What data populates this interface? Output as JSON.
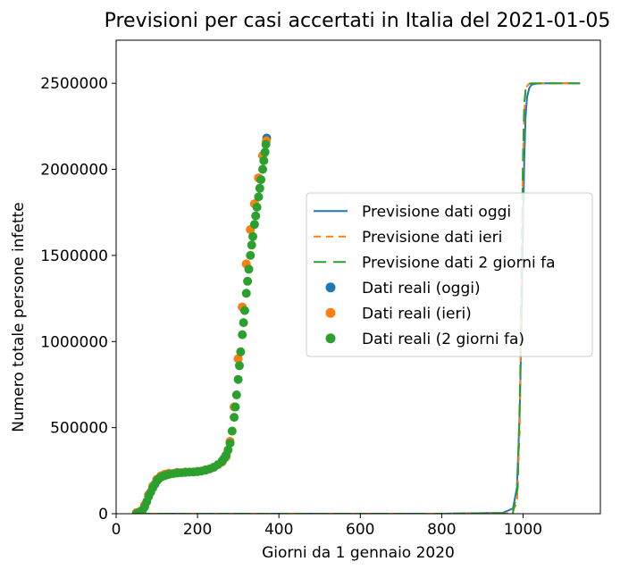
{
  "chart_data": {
    "type": "scatter",
    "title": "Previsioni per casi accertati in Italia del 2021-01-05",
    "xlabel": "Giorni da 1 gennaio 2020",
    "ylabel": "Numero totale persone infette",
    "xlim": [
      0,
      1190
    ],
    "ylim": [
      0,
      2750000
    ],
    "xticks": [
      0,
      200,
      400,
      600,
      800,
      1000
    ],
    "yticks": [
      0,
      500000,
      1000000,
      1500000,
      2000000,
      2500000
    ],
    "xtick_labels": [
      "0",
      "200",
      "400",
      "600",
      "800",
      "1000"
    ],
    "ytick_labels": [
      "0",
      "500000",
      "1000000",
      "1500000",
      "2000000",
      "2500000"
    ],
    "grid": false,
    "legend_position": "center-right",
    "colors": {
      "blue": "#1f77b4",
      "orange": "#ff7f0e",
      "green": "#2ca02c"
    },
    "series": [
      {
        "name": "Previsione dati oggi",
        "kind": "line",
        "style": "solid",
        "color": "#1f77b4",
        "x": [
          55,
          200,
          400,
          600,
          800,
          950,
          975,
          985,
          992,
          997,
          1000,
          1003,
          1006,
          1010,
          1015,
          1020,
          1030,
          1050,
          1100,
          1140
        ],
        "y": [
          0,
          0,
          0,
          0,
          0,
          5000,
          30000,
          150000,
          600000,
          1200000,
          1700000,
          2050000,
          2300000,
          2420000,
          2470000,
          2490000,
          2497000,
          2500000,
          2500000,
          2500000
        ]
      },
      {
        "name": "Previsione dati ieri",
        "kind": "line",
        "style": "dashed",
        "color": "#ff7f0e",
        "x": [
          55,
          200,
          400,
          600,
          800,
          970,
          985,
          992,
          996,
          999,
          1002,
          1005,
          1009,
          1014,
          1020,
          1030,
          1050,
          1100,
          1140
        ],
        "y": [
          0,
          0,
          0,
          0,
          0,
          2000,
          60000,
          500000,
          1300000,
          1900000,
          2250000,
          2420000,
          2480000,
          2495000,
          2499000,
          2500000,
          2500000,
          2500000,
          2500000
        ]
      },
      {
        "name": "Previsione dati 2 giorni fa",
        "kind": "line",
        "style": "longdash",
        "color": "#2ca02c",
        "x": [
          55,
          200,
          400,
          600,
          800,
          975,
          987,
          993,
          997,
          1000,
          1003,
          1006,
          1010,
          1015,
          1020,
          1030,
          1050,
          1100,
          1140
        ],
        "y": [
          0,
          0,
          0,
          0,
          0,
          3000,
          150000,
          800000,
          1600000,
          2100000,
          2380000,
          2460000,
          2490000,
          2498000,
          2500000,
          2500000,
          2500000,
          2500000,
          2500000
        ]
      },
      {
        "name": "Dati reali (oggi)",
        "kind": "scatter",
        "color": "#1f77b4",
        "x": [
          50,
          60,
          70,
          80,
          90,
          100,
          110,
          120,
          130,
          150,
          170,
          200,
          220,
          240,
          260,
          270,
          280,
          290,
          300,
          310,
          320,
          330,
          340,
          350,
          360,
          370
        ],
        "y": [
          5000,
          15000,
          50000,
          110000,
          160000,
          200000,
          220000,
          230000,
          235000,
          240000,
          242000,
          245000,
          255000,
          270000,
          300000,
          330000,
          420000,
          620000,
          900000,
          1200000,
          1450000,
          1650000,
          1800000,
          1950000,
          2080000,
          2182000
        ]
      },
      {
        "name": "Dati reali (ieri)",
        "kind": "scatter",
        "color": "#ff7f0e",
        "x": [
          50,
          60,
          70,
          80,
          90,
          100,
          110,
          120,
          130,
          150,
          170,
          200,
          220,
          240,
          260,
          270,
          280,
          290,
          300,
          310,
          320,
          330,
          340,
          350,
          360,
          369
        ],
        "y": [
          5000,
          15000,
          50000,
          110000,
          160000,
          200000,
          220000,
          230000,
          235000,
          240000,
          242000,
          245000,
          255000,
          270000,
          300000,
          330000,
          420000,
          620000,
          900000,
          1200000,
          1450000,
          1650000,
          1800000,
          1950000,
          2080000,
          2166000
        ]
      },
      {
        "name": "Dati reali (2 giorni fa)",
        "kind": "scatter",
        "color": "#2ca02c",
        "x": [
          50,
          55,
          60,
          65,
          70,
          75,
          80,
          85,
          90,
          95,
          100,
          105,
          110,
          115,
          120,
          125,
          130,
          140,
          150,
          160,
          170,
          180,
          190,
          200,
          210,
          220,
          230,
          240,
          250,
          260,
          265,
          270,
          275,
          280,
          285,
          290,
          293,
          296,
          300,
          303,
          306,
          310,
          313,
          316,
          320,
          323,
          326,
          330,
          333,
          336,
          340,
          343,
          346,
          350,
          353,
          356,
          360,
          363,
          366,
          368
        ],
        "y": [
          2000,
          5000,
          10000,
          20000,
          40000,
          70000,
          100000,
          125000,
          150000,
          170000,
          190000,
          203000,
          212000,
          218000,
          222000,
          226000,
          229000,
          233000,
          236000,
          238000,
          240000,
          242000,
          243000,
          245000,
          248000,
          253000,
          260000,
          270000,
          285000,
          305000,
          320000,
          340000,
          370000,
          410000,
          480000,
          560000,
          620000,
          690000,
          780000,
          860000,
          940000,
          1040000,
          1110000,
          1180000,
          1280000,
          1350000,
          1420000,
          1500000,
          1560000,
          1610000,
          1680000,
          1730000,
          1780000,
          1840000,
          1890000,
          1940000,
          2000000,
          2050000,
          2100000,
          2145000
        ]
      }
    ]
  }
}
